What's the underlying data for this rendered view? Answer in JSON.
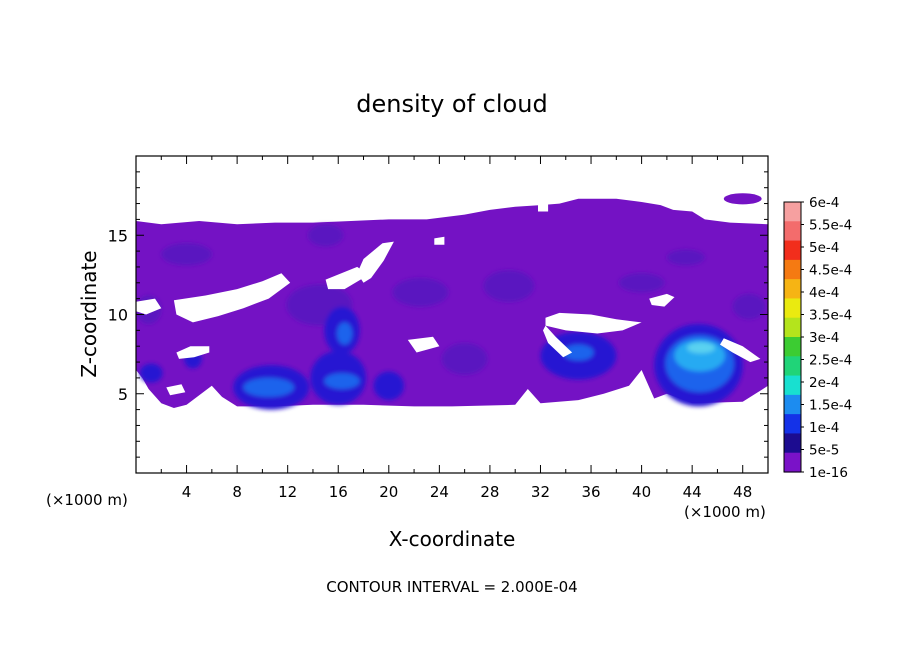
{
  "chart_data": {
    "type": "heatmap",
    "title": "density of cloud",
    "xlabel": "X-coordinate",
    "ylabel": "Z-coordinate",
    "x_unit": "(×1000 m)",
    "z_unit": "(×1000 m)",
    "xlim": [
      0,
      50
    ],
    "ylim": [
      0,
      20
    ],
    "x_ticks": [
      4,
      8,
      12,
      16,
      20,
      24,
      28,
      32,
      36,
      40,
      44,
      48
    ],
    "y_ticks": [
      5,
      10,
      15
    ],
    "footer": "CONTOUR INTERVAL = 2.000E-04",
    "colorbar": {
      "labels": [
        "6e-4",
        "5.5e-4",
        "5e-4",
        "4.5e-4",
        "4e-4",
        "3.5e-4",
        "3e-4",
        "2.5e-4",
        "2e-4",
        "1.5e-4",
        "1e-4",
        "5e-5",
        "1e-16"
      ],
      "colors": [
        "#f6a0a0",
        "#f36c6c",
        "#f22e1c",
        "#f57a12",
        "#f6b414",
        "#eaea10",
        "#b4e41c",
        "#3ccc32",
        "#20d478",
        "#18e0d0",
        "#1c8cf0",
        "#1432e8",
        "#1c0c90",
        "#7a12c8"
      ]
    },
    "field": {
      "background_color": "#7412c4",
      "layers": [
        {
          "level": "5e-5",
          "color": "#5a14c0",
          "patches": [
            {
              "x": 4.0,
              "z": 13.8,
              "rx": 2.0,
              "rz": 0.7
            },
            {
              "x": 14.5,
              "z": 10.6,
              "rx": 2.6,
              "rz": 1.3
            },
            {
              "x": 22.5,
              "z": 11.4,
              "rx": 2.2,
              "rz": 0.9
            },
            {
              "x": 29.5,
              "z": 11.8,
              "rx": 2.0,
              "rz": 1.0
            },
            {
              "x": 15.0,
              "z": 15.0,
              "rx": 1.4,
              "rz": 0.7
            },
            {
              "x": 48.5,
              "z": 10.5,
              "rx": 1.3,
              "rz": 0.8
            },
            {
              "x": 1.0,
              "z": 10.3,
              "rx": 1.0,
              "rz": 0.9
            },
            {
              "x": 40.0,
              "z": 12.0,
              "rx": 1.8,
              "rz": 0.6
            },
            {
              "x": 43.5,
              "z": 13.6,
              "rx": 1.5,
              "rz": 0.5
            },
            {
              "x": 26.0,
              "z": 7.2,
              "rx": 1.8,
              "rz": 1.0
            }
          ]
        },
        {
          "level": "1e-4",
          "color": "#2812d2",
          "patches": [
            {
              "x": 10.7,
              "z": 5.4,
              "rx": 3.0,
              "rz": 1.4
            },
            {
              "x": 16.0,
              "z": 6.0,
              "rx": 2.2,
              "rz": 1.7
            },
            {
              "x": 16.3,
              "z": 9.0,
              "rx": 1.4,
              "rz": 1.5
            },
            {
              "x": 35.0,
              "z": 7.4,
              "rx": 3.0,
              "rz": 1.5
            },
            {
              "x": 44.5,
              "z": 6.8,
              "rx": 3.5,
              "rz": 2.6
            },
            {
              "x": 20.0,
              "z": 5.5,
              "rx": 1.2,
              "rz": 0.9
            },
            {
              "x": 1.2,
              "z": 6.3,
              "rx": 0.9,
              "rz": 0.6
            },
            {
              "x": 4.5,
              "z": 7.2,
              "rx": 0.7,
              "rz": 0.6
            }
          ]
        },
        {
          "level": "1.5e-4",
          "color": "#1e64ec",
          "patches": [
            {
              "x": 10.5,
              "z": 5.4,
              "rx": 2.0,
              "rz": 0.6
            },
            {
              "x": 16.3,
              "z": 5.8,
              "rx": 1.4,
              "rz": 0.5
            },
            {
              "x": 16.5,
              "z": 8.8,
              "rx": 0.6,
              "rz": 0.7
            },
            {
              "x": 44.6,
              "z": 6.9,
              "rx": 2.7,
              "rz": 1.8
            },
            {
              "x": 35.0,
              "z": 7.6,
              "rx": 1.2,
              "rz": 0.5
            }
          ]
        },
        {
          "level": "2e-4",
          "color": "#28aaf2",
          "patches": [
            {
              "x": 44.6,
              "z": 7.4,
              "rx": 2.0,
              "rz": 1.0
            }
          ]
        },
        {
          "level": "2.5e-4",
          "color": "#5ad2f0",
          "patches": [
            {
              "x": 44.7,
              "z": 7.9,
              "rx": 1.1,
              "rz": 0.35
            }
          ]
        }
      ]
    }
  }
}
